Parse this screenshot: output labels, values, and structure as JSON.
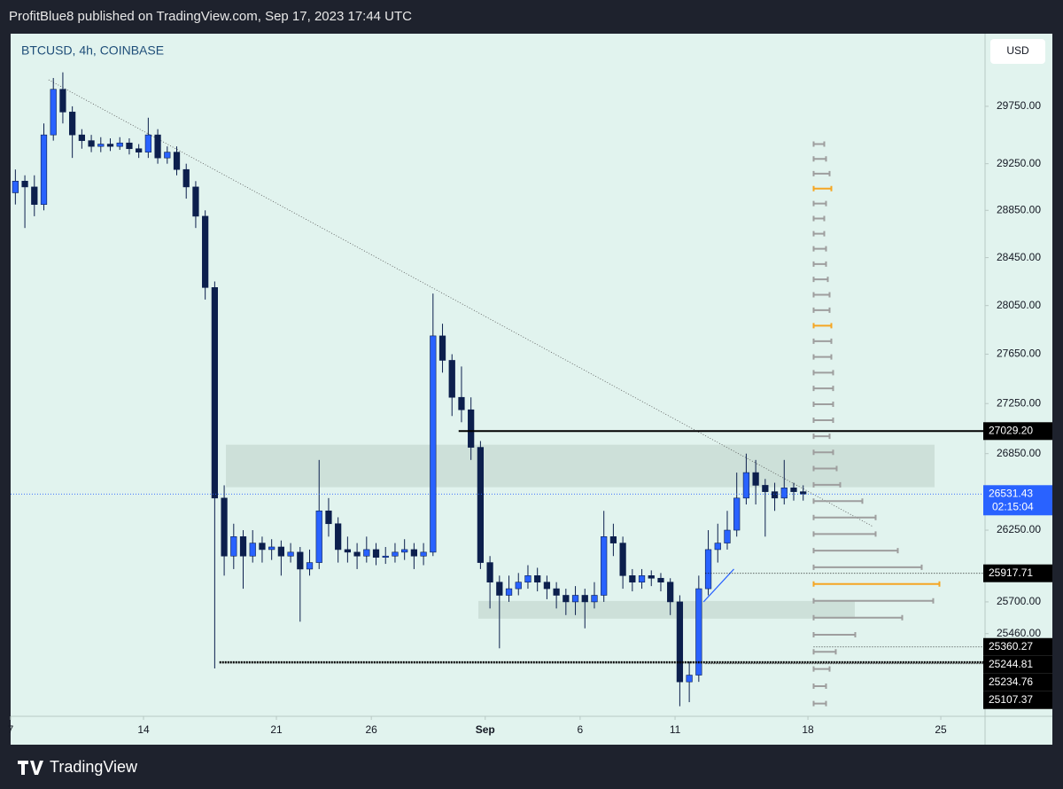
{
  "header": {
    "text": "ProfitBlue8 published on TradingView.com, Sep 17, 2023 17:44 UTC"
  },
  "footer": {
    "brand": "TradingView"
  },
  "chart_data": {
    "type": "candlestick",
    "legend": "BTCUSD, 4h, COINBASE",
    "currency": "USD",
    "y_scale": "log",
    "ylim": [
      24846,
      30395
    ],
    "yticks": [
      {
        "value": 29750,
        "label": "29750.00"
      },
      {
        "value": 29250,
        "label": "29250.00"
      },
      {
        "value": 28850,
        "label": "28850.00"
      },
      {
        "value": 28450,
        "label": "28450.00"
      },
      {
        "value": 28050,
        "label": "28050.00"
      },
      {
        "value": 27650,
        "label": "27650.00"
      },
      {
        "value": 27250,
        "label": "27250.00"
      },
      {
        "value": 26850,
        "label": "26850.00"
      },
      {
        "value": 26250,
        "label": "26250.00"
      },
      {
        "value": 25700,
        "label": "25700.00"
      },
      {
        "value": 25460,
        "label": "25460.00"
      }
    ],
    "xlim": [
      7,
      58.33
    ],
    "xticks": [
      7,
      14,
      21,
      26,
      {
        "value": 32,
        "label": "Sep"
      },
      {
        "value": 37,
        "label": "6"
      },
      {
        "value": 42,
        "label": "11"
      },
      {
        "value": 49,
        "label": "18"
      },
      {
        "value": 56,
        "label": "25"
      }
    ],
    "up_color": "#2962ff",
    "down_color": "#0c1f4d",
    "background": "#e1f3ee",
    "x": [
      7.25,
      7.75,
      8.25,
      8.75,
      9.25,
      9.75,
      10.25,
      10.75,
      11.25,
      11.75,
      12.25,
      12.75,
      13.25,
      13.75,
      14.25,
      14.75,
      15.25,
      15.75,
      16.25,
      16.75,
      17.25,
      17.75,
      18.25,
      18.75,
      19.25,
      19.75,
      20.25,
      20.75,
      21.25,
      21.75,
      22.25,
      22.75,
      23.25,
      23.75,
      24.25,
      24.75,
      25.25,
      25.75,
      26.25,
      26.75,
      27.25,
      27.75,
      28.25,
      28.75,
      29.25,
      29.75,
      30.25,
      30.75,
      31.25,
      31.75,
      32.25,
      32.75,
      33.25,
      33.75,
      34.25,
      34.75,
      35.25,
      35.75,
      36.25,
      36.75,
      37.25,
      37.75,
      38.25,
      38.75,
      39.25,
      39.75,
      40.25,
      40.75,
      41.25,
      41.75,
      42.25,
      42.75,
      43.25,
      43.75,
      44.25,
      44.75,
      45.25,
      45.75,
      46.25,
      46.75,
      47.25,
      47.75,
      48.25,
      48.75
    ],
    "open": [
      29000,
      29100,
      29050,
      28900,
      29500,
      29900,
      29700,
      29500,
      29450,
      29400,
      29420,
      29400,
      29430,
      29380,
      29350,
      29500,
      29300,
      29350,
      29200,
      29050,
      28800,
      28200,
      26500,
      26050,
      26200,
      26050,
      26150,
      26100,
      26120,
      26050,
      26080,
      25950,
      26000,
      26400,
      26300,
      26100,
      26080,
      26050,
      26100,
      26040,
      26050,
      26080,
      26100,
      26050,
      26080,
      27800,
      27600,
      27300,
      27200,
      26900,
      26000,
      25850,
      25750,
      25800,
      25850,
      25900,
      25850,
      25800,
      25750,
      25700,
      25750,
      25700,
      25750,
      26200,
      26150,
      25900,
      25850,
      25900,
      25880,
      25850,
      25700,
      25100,
      25150,
      25800,
      26100,
      26150,
      26250,
      26500,
      26700,
      26600,
      26550,
      26500,
      26580,
      26550
    ],
    "high": [
      29200,
      29150,
      29150,
      29600,
      30000,
      30050,
      29750,
      29550,
      29500,
      29480,
      29470,
      29480,
      29470,
      29420,
      29650,
      29550,
      29400,
      29400,
      29250,
      29100,
      28850,
      28250,
      26600,
      26300,
      26250,
      26250,
      26200,
      26180,
      26170,
      26150,
      26120,
      26100,
      26800,
      26500,
      26350,
      26200,
      26150,
      26200,
      26150,
      26120,
      26150,
      26180,
      26150,
      26150,
      28150,
      27900,
      27650,
      27550,
      27300,
      26950,
      26050,
      25900,
      25900,
      25920,
      25980,
      25960,
      25900,
      25850,
      25800,
      25820,
      25800,
      25850,
      26400,
      26300,
      26200,
      25950,
      25950,
      25940,
      25920,
      25880,
      25750,
      25250,
      25900,
      26250,
      26300,
      26400,
      26700,
      26850,
      26800,
      26650,
      26620,
      26800,
      26620,
      26600
    ],
    "low": [
      28900,
      28700,
      28800,
      28850,
      29450,
      29600,
      29300,
      29380,
      29350,
      29350,
      29360,
      29370,
      29330,
      29300,
      29300,
      29250,
      29250,
      29150,
      28950,
      28700,
      28100,
      25200,
      25900,
      25950,
      25800,
      26000,
      26000,
      26020,
      25900,
      26000,
      25550,
      25900,
      25950,
      26200,
      26000,
      26000,
      25950,
      26000,
      25980,
      25990,
      26000,
      26020,
      25950,
      25980,
      26050,
      27500,
      27150,
      27100,
      26800,
      25950,
      25650,
      25350,
      25700,
      25750,
      25800,
      25780,
      25720,
      25650,
      25600,
      25600,
      25500,
      25650,
      25700,
      26050,
      25800,
      25780,
      25800,
      25820,
      25780,
      25600,
      24920,
      24950,
      25100,
      25750,
      26000,
      26100,
      26200,
      26450,
      26450,
      26200,
      26400,
      26450,
      26480,
      26480
    ],
    "close": [
      29100,
      29050,
      28900,
      29500,
      29900,
      29700,
      29500,
      29450,
      29400,
      29420,
      29400,
      29430,
      29380,
      29350,
      29500,
      29300,
      29350,
      29200,
      29050,
      28800,
      28200,
      26500,
      26050,
      26200,
      26050,
      26150,
      26100,
      26120,
      26050,
      26080,
      25950,
      26000,
      26400,
      26300,
      26100,
      26080,
      26050,
      26100,
      26040,
      26050,
      26080,
      26100,
      26050,
      26080,
      27800,
      27600,
      27300,
      27200,
      26900,
      26000,
      25850,
      25750,
      25800,
      25850,
      25900,
      25850,
      25800,
      25750,
      25700,
      25750,
      25700,
      25750,
      26200,
      26150,
      25900,
      25850,
      25900,
      25880,
      25850,
      25700,
      25100,
      25150,
      25800,
      26100,
      26150,
      26250,
      26500,
      26700,
      26600,
      26550,
      26500,
      26580,
      26550,
      26531
    ],
    "current_price": {
      "value": 26531.43,
      "label": "26531.43",
      "countdown": "02:15:04",
      "color": "#2962ff"
    },
    "price_lines": [
      {
        "value": 27029.2,
        "label": "27029.20",
        "start": 30.6,
        "style": "solid"
      },
      {
        "value": 25917.71,
        "label": "25917.71",
        "start": 43.6,
        "style": "dotted"
      },
      {
        "value": 25360.27,
        "label": "25360.27",
        "start": 49.3,
        "style": "dotted"
      },
      {
        "value": 25244.81,
        "label": "25244.81",
        "start": 18.0,
        "style": "bold"
      },
      {
        "value": 25234.76,
        "label": "25234.76",
        "start": 43.6,
        "style": "dotted"
      },
      {
        "value": 25107.37,
        "label": "25107.37",
        "start": 49.3,
        "style": "none"
      }
    ],
    "zones": [
      {
        "x": [
          18.34,
          55.67
        ],
        "y": [
          26585,
          26921
        ]
      },
      {
        "x": [
          31.64,
          51.47
        ],
        "y": [
          25573,
          25707
        ]
      }
    ],
    "trendlines": [
      {
        "x": [
          9.0,
          52.4
        ],
        "y": [
          29984,
          26280
        ],
        "style": "dotted",
        "color": "#555555"
      },
      {
        "x": [
          43.5,
          45.1
        ],
        "y": [
          25700,
          25950
        ],
        "style": "solid",
        "color": "#2962ff"
      }
    ],
    "volume_profile": {
      "start": 49.3,
      "color": "#9e9e9e",
      "highlight_color": "#f5a623",
      "highlight": [
        3,
        12,
        28
      ],
      "prices": [
        29420,
        29292,
        29164,
        29036,
        28908,
        28780,
        28652,
        28524,
        28396,
        28268,
        28140,
        28012,
        27884,
        27756,
        27628,
        27500,
        27372,
        27244,
        27116,
        26988,
        26860,
        26732,
        26604,
        26476,
        26348,
        26220,
        26092,
        25964,
        25836,
        25708,
        25580,
        25452,
        25324,
        25196,
        25068,
        24940
      ],
      "values": [
        12,
        14,
        18,
        20,
        14,
        12,
        12,
        14,
        14,
        16,
        18,
        18,
        20,
        20,
        20,
        22,
        22,
        22,
        22,
        18,
        22,
        26,
        30,
        55,
        70,
        70,
        95,
        122,
        142,
        135,
        100,
        47,
        25,
        18,
        14,
        14
      ]
    }
  }
}
